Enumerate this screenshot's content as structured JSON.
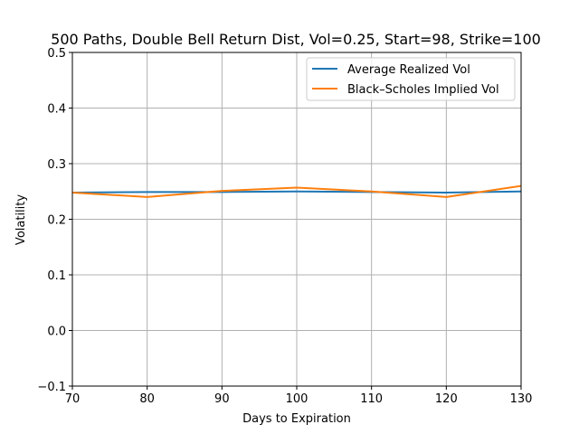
{
  "chart_data": {
    "type": "line",
    "title": "500 Paths, Double Bell Return Dist, Vol=0.25, Start=98, Strike=100",
    "xlabel": "Days to Expiration",
    "ylabel": "Volatility",
    "xlim": [
      70,
      130
    ],
    "ylim": [
      -0.1,
      0.5
    ],
    "xticks": [
      "70",
      "80",
      "90",
      "100",
      "110",
      "120",
      "130"
    ],
    "yticks": [
      "−0.1",
      "0.0",
      "0.1",
      "0.2",
      "0.3",
      "0.4",
      "0.5"
    ],
    "grid": true,
    "legend_position": "top-right",
    "x": [
      70,
      80,
      90,
      100,
      110,
      120,
      130
    ],
    "series": [
      {
        "name": "Average Realized Vol",
        "color": "#1f77b4",
        "values": [
          0.248,
          0.249,
          0.249,
          0.25,
          0.249,
          0.248,
          0.25
        ]
      },
      {
        "name": "Black–Scholes Implied Vol",
        "color": "#ff7f0e",
        "values": [
          0.248,
          0.24,
          0.251,
          0.257,
          0.25,
          0.24,
          0.26
        ]
      }
    ]
  }
}
